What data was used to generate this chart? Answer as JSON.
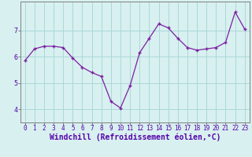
{
  "x": [
    0,
    1,
    2,
    3,
    4,
    5,
    6,
    7,
    8,
    9,
    10,
    11,
    12,
    13,
    14,
    15,
    16,
    17,
    18,
    19,
    20,
    21,
    22,
    23
  ],
  "y": [
    5.85,
    6.3,
    6.4,
    6.4,
    6.35,
    5.95,
    5.6,
    5.4,
    5.25,
    4.3,
    4.05,
    4.9,
    6.15,
    6.7,
    7.25,
    7.1,
    6.7,
    6.35,
    6.25,
    6.3,
    6.35,
    6.55,
    7.7,
    7.05
  ],
  "line_color": "#7B1FA2",
  "marker": "+",
  "bg_color": "#d8f0f0",
  "grid_color": "#acd8d8",
  "xlabel": "Windchill (Refroidissement éolien,°C)",
  "ylim": [
    3.5,
    8.1
  ],
  "xlim": [
    -0.5,
    23.5
  ],
  "yticks": [
    4,
    5,
    6,
    7
  ],
  "xticks": [
    0,
    1,
    2,
    3,
    4,
    5,
    6,
    7,
    8,
    9,
    10,
    11,
    12,
    13,
    14,
    15,
    16,
    17,
    18,
    19,
    20,
    21,
    22,
    23
  ],
  "tick_fontsize": 5.5,
  "xlabel_fontsize": 7.0,
  "spine_color": "#808080"
}
